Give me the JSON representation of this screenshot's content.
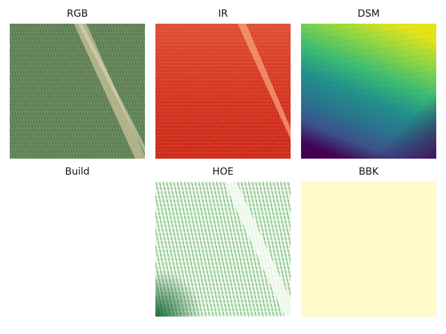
{
  "panels": [
    {
      "title": "RGB",
      "colormap": "true-color",
      "base_color": "#6f8f63"
    },
    {
      "title": "IR",
      "colormap": "red",
      "base_color": "#d8311f"
    },
    {
      "title": "DSM",
      "colormap": "viridis",
      "base_color": "#1f9a8a"
    },
    {
      "title": "Build",
      "colormap": "blank",
      "base_color": "#ffffff"
    },
    {
      "title": "HOE",
      "colormap": "greens",
      "base_color": "#6fbf73"
    },
    {
      "title": "BBK",
      "colormap": "yellow-solid",
      "base_color": "#fffac8"
    }
  ]
}
